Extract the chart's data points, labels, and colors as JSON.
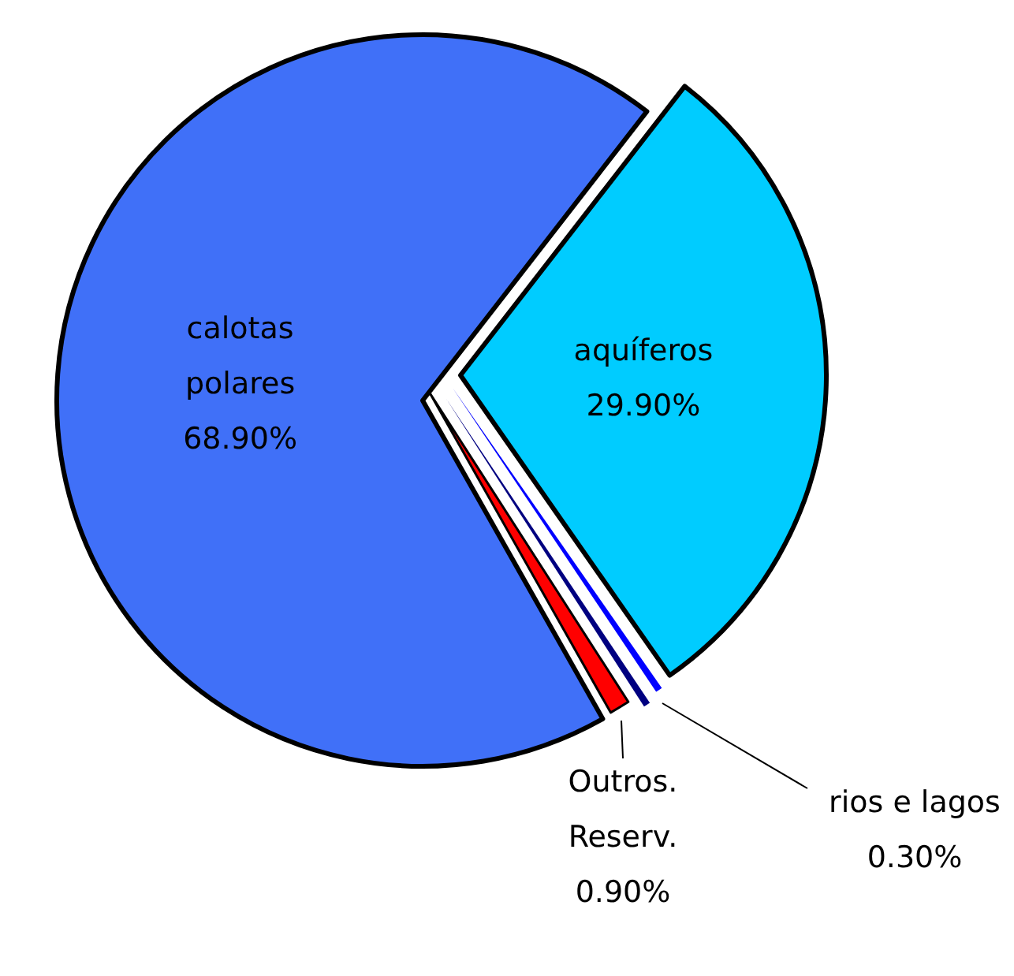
{
  "chart_data": {
    "type": "pie",
    "categories": [
      "aquíferos",
      "rios e lagos",
      null,
      "Outros. Reserv.",
      "calotas polares"
    ],
    "values": [
      29.9,
      0.3,
      0.3,
      0.9,
      68.9
    ],
    "value_labels": [
      "29.90%",
      "0.30%",
      null,
      "0.90%",
      "68.90%"
    ],
    "colors": [
      "#00ccff",
      "#0000ff",
      "#000080",
      "#ff0000",
      "#4070f8"
    ],
    "legend": false
  }
}
